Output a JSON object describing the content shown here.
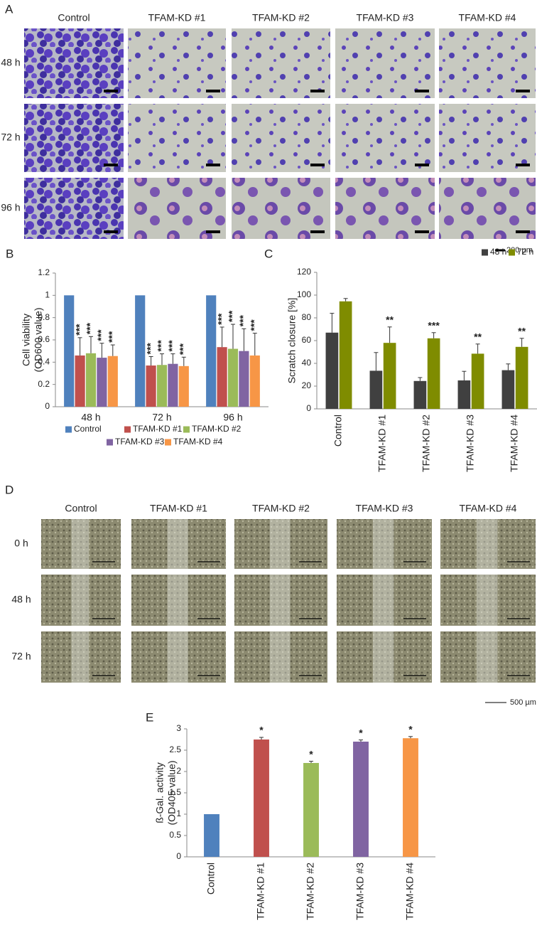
{
  "panel_a": {
    "label": "A",
    "columns": [
      "Control",
      "TFAM-KD #1",
      "TFAM-KD #2",
      "TFAM-KD #3",
      "TFAM-KD #4"
    ],
    "rows": [
      "48 h",
      "72 h",
      "96 h"
    ],
    "scale_bar": "200 µm"
  },
  "panel_d": {
    "label": "D",
    "columns": [
      "Control",
      "TFAM-KD #1",
      "TFAM-KD #2",
      "TFAM-KD #3",
      "TFAM-KD #4"
    ],
    "rows": [
      "0 h",
      "48 h",
      "72 h"
    ],
    "scale_bar": "500 µm"
  },
  "chart_data": [
    {
      "type": "bar",
      "panel_label": "B",
      "ylabel": [
        "Cell viability",
        "(OD600 value)"
      ],
      "categories": [
        "48 h",
        "72 h",
        "96 h"
      ],
      "ylim": [
        0,
        1.2
      ],
      "yticks": [
        0,
        0.2,
        0.4,
        0.6,
        0.8,
        1,
        1.2
      ],
      "legend": "bottom",
      "series": [
        {
          "name": "Control",
          "color": "#4f81bd",
          "values": [
            1,
            1,
            1
          ],
          "errors": [
            null,
            null,
            null
          ],
          "annotations": [
            null,
            null,
            null
          ]
        },
        {
          "name": "TFAM-KD #1",
          "color": "#c0504d",
          "values": [
            0.46,
            0.37,
            0.535
          ],
          "errors": [
            0.16,
            0.08,
            0.18
          ],
          "annotations": [
            "***",
            "***",
            "***"
          ]
        },
        {
          "name": "TFAM-KD #2",
          "color": "#9bbb59",
          "values": [
            0.48,
            0.375,
            0.52
          ],
          "errors": [
            0.15,
            0.1,
            0.22
          ],
          "annotations": [
            "***",
            "***",
            "***"
          ]
        },
        {
          "name": "TFAM-KD #3",
          "color": "#8064a2",
          "values": [
            0.44,
            0.385,
            0.5
          ],
          "errors": [
            0.13,
            0.09,
            0.2
          ],
          "annotations": [
            "***",
            "***",
            "***"
          ]
        },
        {
          "name": "TFAM-KD #4",
          "color": "#f79646",
          "values": [
            0.455,
            0.365,
            0.46
          ],
          "errors": [
            0.1,
            0.08,
            0.2
          ],
          "annotations": [
            "***",
            "***",
            "***"
          ]
        }
      ]
    },
    {
      "type": "bar",
      "panel_label": "C",
      "ylabel": [
        "Scratch closure [%]"
      ],
      "categories": [
        "Control",
        "TFAM-KD #1",
        "TFAM-KD #2",
        "TFAM-KD #3",
        "TFAM-KD #4"
      ],
      "x_label_rotation": -90,
      "ylim": [
        0,
        120
      ],
      "yticks": [
        0,
        20,
        40,
        60,
        80,
        100,
        120
      ],
      "legend": "top-right",
      "series": [
        {
          "name": "48 h",
          "color": "#404040",
          "values": [
            67,
            33.5,
            24.5,
            25,
            34
          ],
          "errors": [
            17,
            16,
            3,
            8,
            5.5
          ]
        },
        {
          "name": "72 h",
          "color": "#7f8c00",
          "values": [
            94.5,
            58,
            62,
            48.5,
            54.5
          ],
          "errors": [
            2.5,
            14,
            5,
            8.5,
            7.5
          ],
          "annotations": [
            null,
            "**",
            "***",
            "**",
            "**"
          ]
        }
      ]
    },
    {
      "type": "bar",
      "panel_label": "E",
      "ylabel": [
        "ß-Gal. activity",
        "(OD405 value)"
      ],
      "categories": [
        "Control",
        "TFAM-KD #1",
        "TFAM-KD #2",
        "TFAM-KD #3",
        "TFAM-KD #4"
      ],
      "x_label_rotation": -90,
      "ylim": [
        0,
        3
      ],
      "yticks": [
        0,
        0.5,
        1,
        1.5,
        2,
        2.5,
        3
      ],
      "values": [
        1,
        2.75,
        2.2,
        2.7,
        2.78
      ],
      "colors": [
        "#4f81bd",
        "#c0504d",
        "#9bbb59",
        "#8064a2",
        "#f79646"
      ],
      "errors": [
        null,
        0.05,
        0.04,
        0.04,
        0.04
      ],
      "annotations": [
        null,
        "*",
        "*",
        "*",
        "*"
      ]
    }
  ]
}
